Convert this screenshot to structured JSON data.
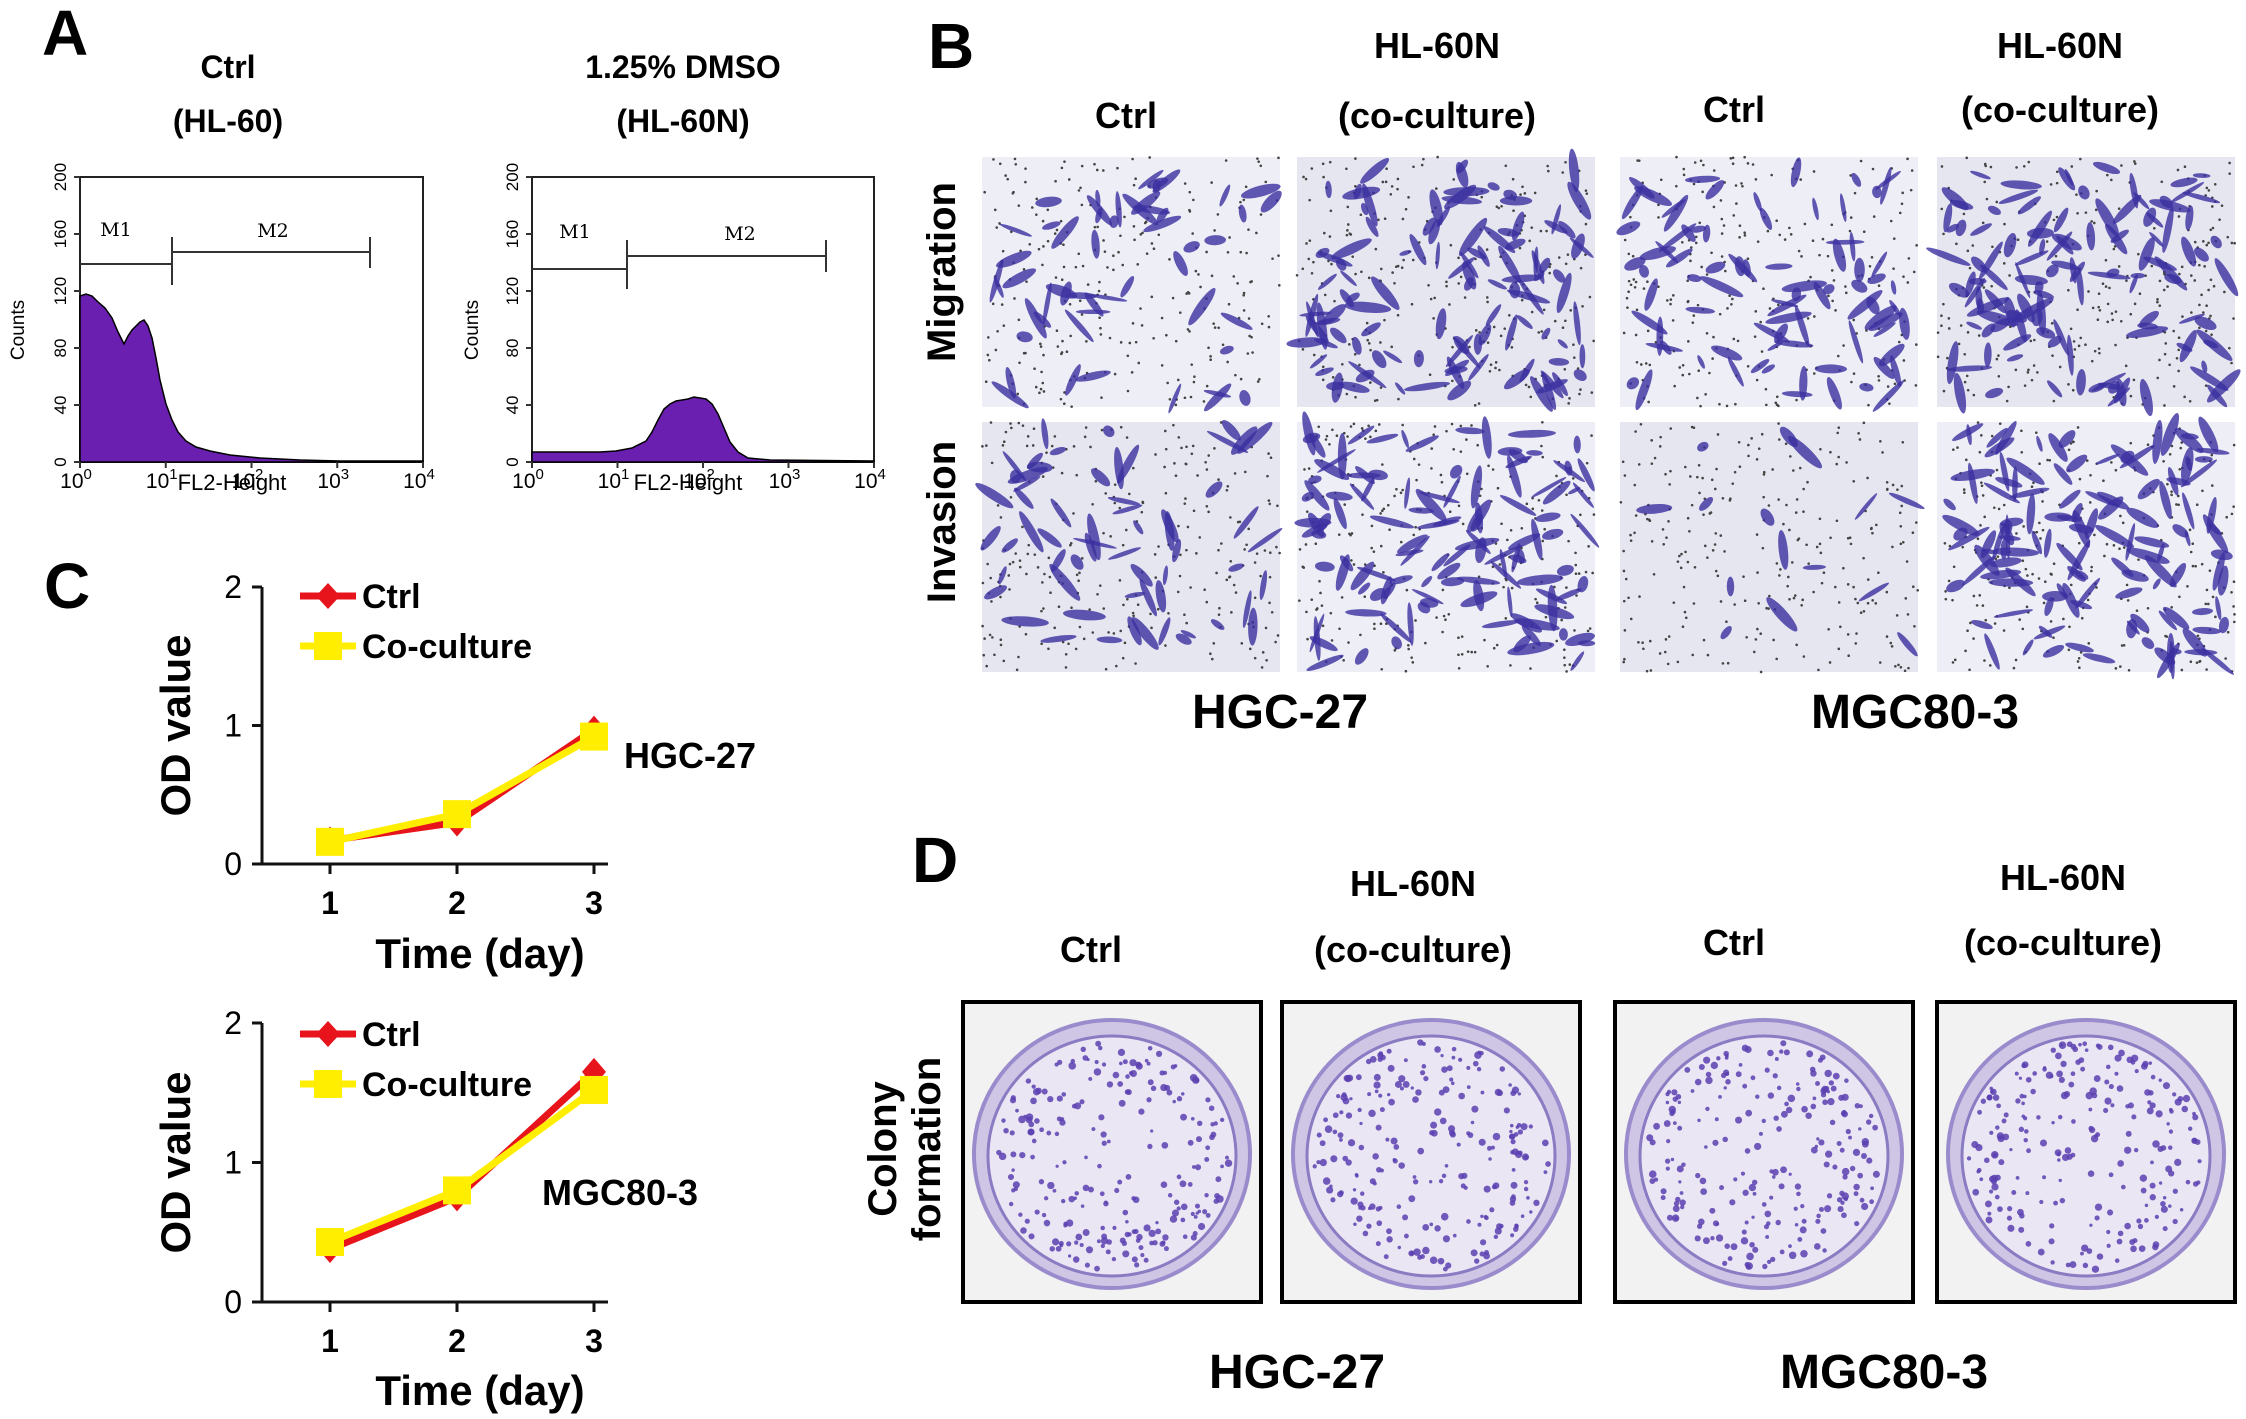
{
  "panel_letters": {
    "a": "A",
    "b": "B",
    "c": "C",
    "d": "D"
  },
  "panel_a": {
    "left": {
      "title_line1": "Ctrl",
      "title_line2": "(HL-60)",
      "gate1": "M1",
      "gate2": "M2"
    },
    "right": {
      "title_line1": "1.25% DMSO",
      "title_line2": "(HL-60N)",
      "gate1": "M1",
      "gate2": "M2"
    },
    "y_label": "Counts",
    "x_label": "FL2-Height",
    "y_ticks": [
      "0",
      "40",
      "80",
      "120",
      "160",
      "200"
    ],
    "x_tick_base": "10",
    "x_tick_exps": [
      "0",
      "1",
      "2",
      "3",
      "4"
    ],
    "fill_color": "#6a1fb0"
  },
  "panel_b": {
    "col_headers": [
      {
        "line1": "",
        "line2": "Ctrl"
      },
      {
        "line1": "HL-60N",
        "line2": "(co-culture)"
      },
      {
        "line1": "",
        "line2": "Ctrl"
      },
      {
        "line1": "HL-60N",
        "line2": "(co-culture)"
      }
    ],
    "row_labels": [
      "Migration",
      "Invasion"
    ],
    "group_labels": [
      "HGC-27",
      "MGC80-3"
    ],
    "stain_color": "#3b2fa0",
    "density": [
      [
        0.35,
        0.75,
        0.55,
        0.8
      ],
      [
        0.4,
        0.8,
        0.1,
        0.85
      ]
    ]
  },
  "panel_c": {
    "legend": {
      "ctrl": "Ctrl",
      "coculture": "Co-culture"
    },
    "series_colors": {
      "ctrl": "#e8141c",
      "coculture": "#ffee00"
    }
  },
  "panel_d": {
    "col_headers": [
      {
        "line1": "",
        "line2": "Ctrl"
      },
      {
        "line1": "HL-60N",
        "line2": "(co-culture)"
      },
      {
        "line1": "",
        "line2": "Ctrl"
      },
      {
        "line1": "HL-60N",
        "line2": "(co-culture)"
      }
    ],
    "row_label_line1": "Colony",
    "row_label_line2": "formation",
    "group_labels": [
      "HGC-27",
      "MGC80-3"
    ],
    "colony_color": "#5a3fb0"
  },
  "chart_data": [
    {
      "type": "line",
      "cell_line": "HGC-27",
      "xlabel": "Time (day)",
      "ylabel": "OD value",
      "x": [
        1,
        2,
        3
      ],
      "x_ticks": [
        "1",
        "2",
        "3"
      ],
      "y_ticks": [
        "0",
        "1",
        "2"
      ],
      "ylim": [
        0,
        2
      ],
      "series": [
        {
          "name": "Ctrl",
          "values": [
            0.17,
            0.3,
            0.97
          ],
          "marker": "diamond"
        },
        {
          "name": "Co-culture",
          "values": [
            0.16,
            0.36,
            0.92
          ],
          "marker": "square"
        }
      ],
      "legend_position": "top-left"
    },
    {
      "type": "line",
      "cell_line": "MGC80-3",
      "xlabel": "Time (day)",
      "ylabel": "OD value",
      "x": [
        1,
        2,
        3
      ],
      "x_ticks": [
        "1",
        "2",
        "3"
      ],
      "y_ticks": [
        "0",
        "1",
        "2"
      ],
      "ylim": [
        0,
        2
      ],
      "series": [
        {
          "name": "Ctrl",
          "values": [
            0.38,
            0.75,
            1.65
          ],
          "marker": "diamond"
        },
        {
          "name": "Co-culture",
          "values": [
            0.43,
            0.8,
            1.52
          ],
          "marker": "square"
        }
      ],
      "legend_position": "top-left"
    }
  ]
}
